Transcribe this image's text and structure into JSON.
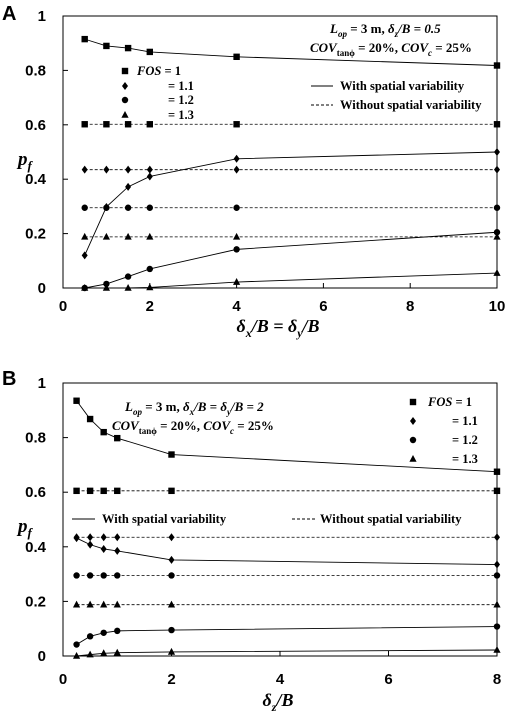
{
  "chart_data": [
    {
      "panel_label": "A",
      "type": "line",
      "xlabel": {
        "main": "δ",
        "sub1": "x",
        "mid": "/B = δ",
        "sub2": "y",
        "end": "/B"
      },
      "ylabel": {
        "main": "p",
        "sub": "f"
      },
      "xlim": [
        0,
        10
      ],
      "ylim": [
        0,
        1
      ],
      "xticks": [
        0,
        2,
        4,
        6,
        8,
        10
      ],
      "yticks": [
        0,
        0.2,
        0.4,
        0.6,
        0.8,
        1
      ],
      "ytick_labels": [
        "0",
        "0.2",
        "0.4",
        "0.6",
        "0.8",
        "1"
      ],
      "annotation": {
        "line1": {
          "a": "L",
          "a_sub": "op",
          "b": " = 3 m, ",
          "c": "δ",
          "c_sub": "z",
          "d": "/B = 0.5"
        },
        "line2": {
          "a": "COV",
          "a_sub": "tanϕ",
          "b": " = 20%, ",
          "c": "COV",
          "c_sub": "c",
          "d": " = 25%"
        }
      },
      "fos_legend": [
        {
          "marker": "square",
          "fos_label": "FOS",
          "value": " = 1"
        },
        {
          "marker": "diamond",
          "value": "= 1.1"
        },
        {
          "marker": "circle",
          "value": "= 1.2"
        },
        {
          "marker": "triangle",
          "value": "= 1.3"
        }
      ],
      "line_legend": [
        {
          "style": "solid",
          "label": "With spatial variability"
        },
        {
          "style": "dashed",
          "label": "Without spatial variability"
        }
      ],
      "x": [
        0.5,
        1,
        1.5,
        2,
        4,
        10
      ],
      "series": [
        {
          "fos": "1",
          "marker": "square",
          "with": [
            0.915,
            0.89,
            0.882,
            0.868,
            0.85,
            0.818
          ],
          "without": 0.602
        },
        {
          "fos": "1.1",
          "marker": "diamond",
          "with": [
            0.12,
            0.298,
            0.372,
            0.41,
            0.475,
            0.5
          ],
          "without": 0.435
        },
        {
          "fos": "1.2",
          "marker": "circle",
          "with": [
            0.0,
            0.015,
            0.042,
            0.07,
            0.142,
            0.205
          ],
          "without": 0.295
        },
        {
          "fos": "1.3",
          "marker": "triangle",
          "with": [
            0.0,
            0.0,
            0.0,
            0.002,
            0.022,
            0.055
          ],
          "without": 0.188
        }
      ]
    },
    {
      "panel_label": "B",
      "type": "line",
      "xlabel": {
        "main": "δ",
        "sub1": "z",
        "mid": "/B",
        "sub2": "",
        "end": ""
      },
      "ylabel": {
        "main": "p",
        "sub": "f"
      },
      "xlim": [
        0,
        8
      ],
      "ylim": [
        0,
        1
      ],
      "xticks": [
        0,
        2,
        4,
        6,
        8
      ],
      "yticks": [
        0,
        0.2,
        0.4,
        0.6,
        0.8,
        1
      ],
      "ytick_labels": [
        "0",
        "0.2",
        "0.4",
        "0.6",
        "0.8",
        "1"
      ],
      "annotation": {
        "line1": {
          "a": "L",
          "a_sub": "op",
          "b": " = 3 m, ",
          "c": "δ",
          "c_sub": "x",
          "d": "/B = δ",
          "e_sub": "y",
          "f": "/B = 2"
        },
        "line2": {
          "a": "COV",
          "a_sub": "tanϕ",
          "b": " = 20%, ",
          "c": "COV",
          "c_sub": "c",
          "d": " = 25%"
        }
      },
      "fos_legend": [
        {
          "marker": "square",
          "fos_label": "FOS",
          "value": " = 1"
        },
        {
          "marker": "diamond",
          "value": "= 1.1"
        },
        {
          "marker": "circle",
          "value": "= 1.2"
        },
        {
          "marker": "triangle",
          "value": "= 1.3"
        }
      ],
      "line_legend": [
        {
          "style": "solid",
          "label": "With spatial variability"
        },
        {
          "style": "dashed",
          "label": "Without spatial variability"
        }
      ],
      "x": [
        0.25,
        0.5,
        0.75,
        1,
        2,
        8
      ],
      "series": [
        {
          "fos": "1",
          "marker": "square",
          "with": [
            0.935,
            0.868,
            0.82,
            0.798,
            0.738,
            0.675
          ],
          "without": 0.605
        },
        {
          "fos": "1.1",
          "marker": "diamond",
          "with": [
            0.432,
            0.408,
            0.392,
            0.385,
            0.352,
            0.335
          ],
          "without": 0.435
        },
        {
          "fos": "1.2",
          "marker": "circle",
          "with": [
            0.042,
            0.072,
            0.085,
            0.092,
            0.095,
            0.108
          ],
          "without": 0.295
        },
        {
          "fos": "1.3",
          "marker": "triangle",
          "with": [
            0.0,
            0.005,
            0.01,
            0.012,
            0.015,
            0.022
          ],
          "without": 0.188
        }
      ]
    }
  ]
}
